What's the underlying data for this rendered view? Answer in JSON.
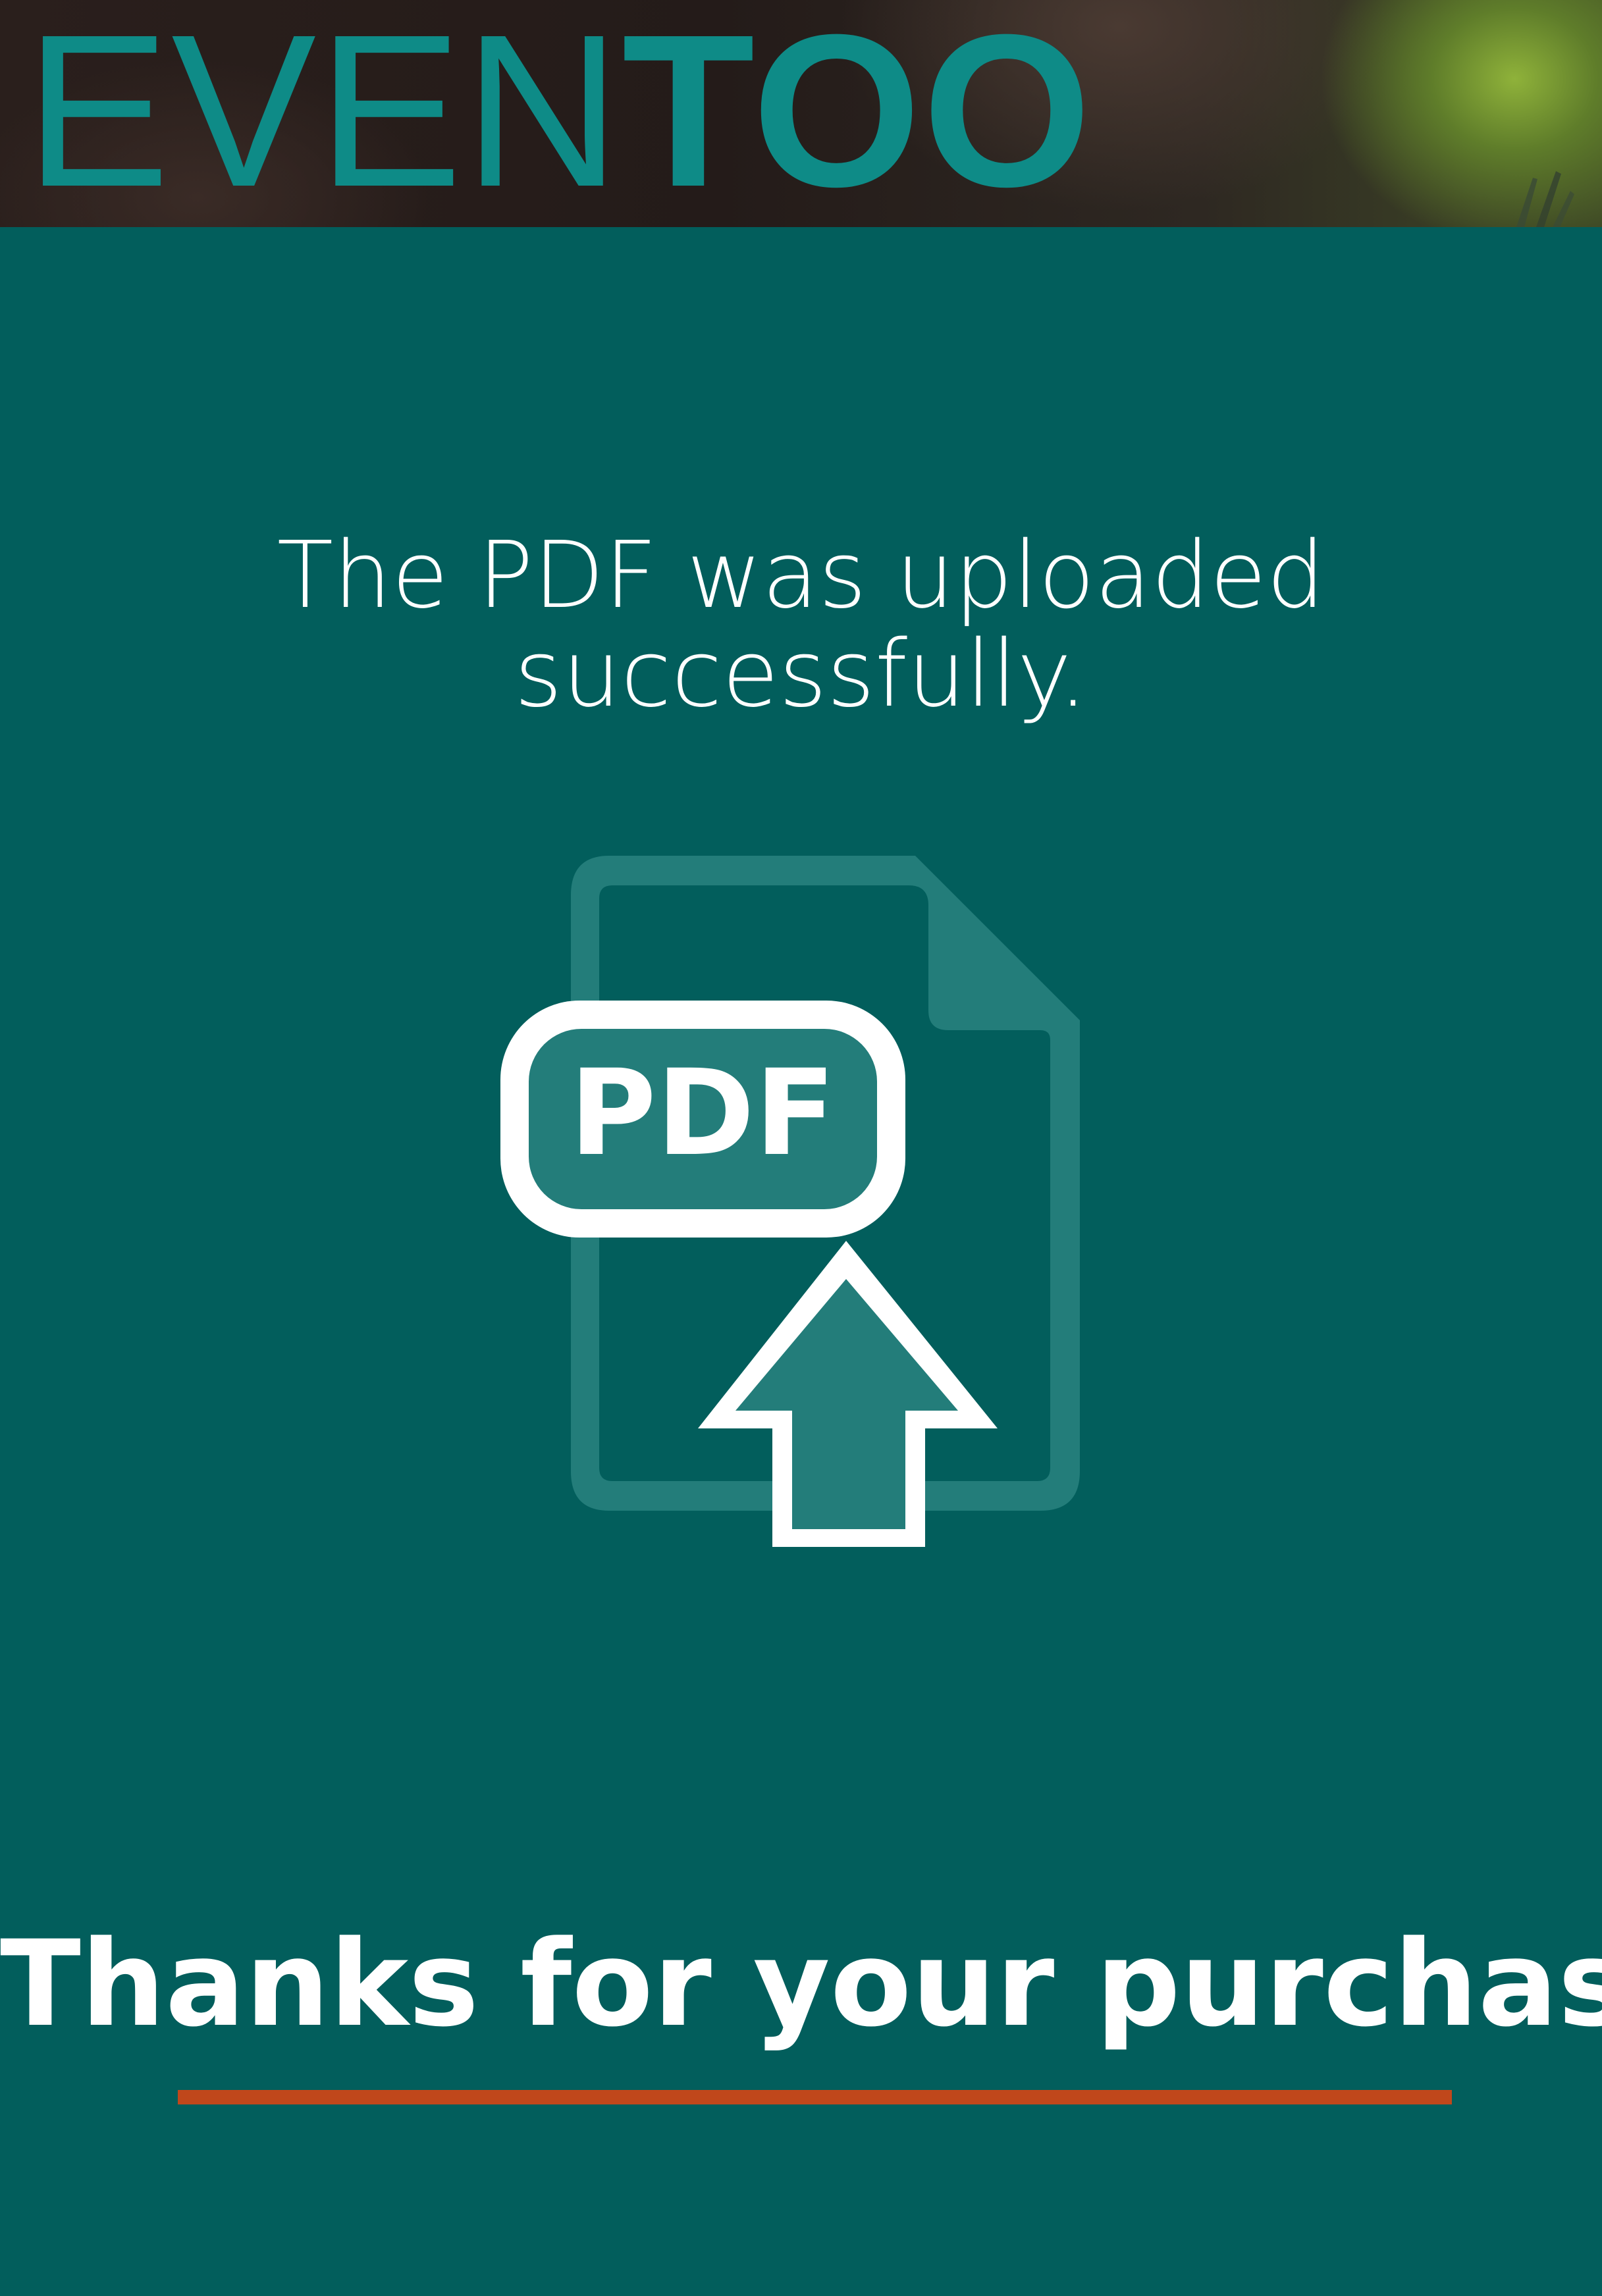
{
  "header": {
    "logo_light": "EVEN",
    "logo_bold": "TOO"
  },
  "message": {
    "line1": "The PDF was uploaded",
    "line2": "successfully."
  },
  "icon": {
    "name": "pdf-upload-icon",
    "label": "PDF"
  },
  "thanks": {
    "text": "Thanks for your purchase."
  },
  "colors": {
    "background": "#025e5c",
    "accent": "#0e8b87",
    "icon_fill": "#237d7a",
    "underline": "#c0471b",
    "text": "#ffffff"
  }
}
